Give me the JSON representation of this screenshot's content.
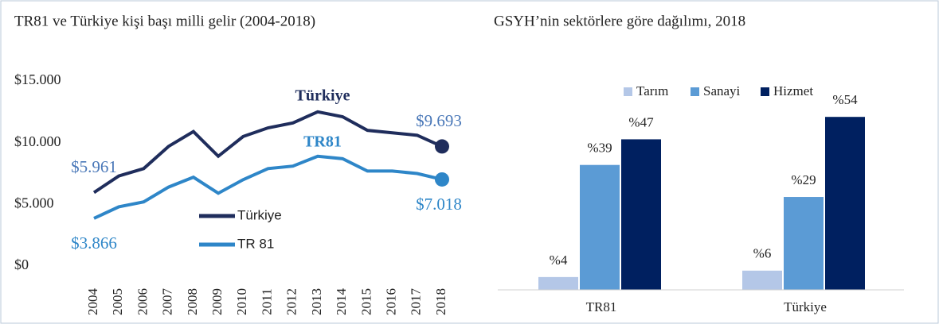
{
  "chart_data": [
    {
      "type": "line",
      "title": "TR81 ve Türkiye kişi başı milli gelir (2004-2018)",
      "categories": [
        "2004",
        "2005",
        "2006",
        "2007",
        "2008",
        "2009",
        "2010",
        "2011",
        "2012",
        "2013",
        "2014",
        "2015",
        "2016",
        "2017",
        "2018"
      ],
      "series": [
        {
          "name": "Türkiye",
          "color": "#1f2d5c",
          "values": [
            5961,
            7300,
            7900,
            9700,
            10900,
            8900,
            10500,
            11200,
            11600,
            12500,
            12100,
            11000,
            10800,
            10600,
            9693
          ],
          "value_labels": [
            "$5.961",
            null,
            null,
            null,
            null,
            null,
            null,
            null,
            null,
            null,
            null,
            null,
            null,
            null,
            "$9.693"
          ]
        },
        {
          "name": "TR 81",
          "color": "#2e86c8",
          "values": [
            3866,
            4800,
            5200,
            6400,
            7200,
            5900,
            7000,
            7900,
            8100,
            8900,
            8700,
            7700,
            7700,
            7500,
            7018
          ],
          "value_labels": [
            "$3.866",
            null,
            null,
            null,
            null,
            null,
            null,
            null,
            null,
            null,
            null,
            null,
            null,
            null,
            "$7.018"
          ]
        }
      ],
      "annotations": [
        "Türkiye",
        "TR81"
      ],
      "ylim": [
        0,
        15000
      ],
      "yticks": [
        {
          "value": 0,
          "label": "$0"
        },
        {
          "value": 5000,
          "label": "$5.000"
        },
        {
          "value": 10000,
          "label": "$10.000"
        },
        {
          "value": 15000,
          "label": "$15.000"
        }
      ]
    },
    {
      "type": "bar",
      "title": "GSYH’nin sektörlere göre dağılımı, 2018",
      "categories": [
        "TR81",
        "Türkiye"
      ],
      "series": [
        {
          "name": "Tarım",
          "color": "#b4c7e7",
          "values": [
            4,
            6
          ],
          "value_labels": [
            "%4",
            "%6"
          ]
        },
        {
          "name": "Sanayi",
          "color": "#5b9bd5",
          "values": [
            39,
            29
          ],
          "value_labels": [
            "%39",
            "%29"
          ]
        },
        {
          "name": "Hizmet",
          "color": "#002060",
          "values": [
            47,
            54
          ],
          "value_labels": [
            "%47",
            "%54"
          ]
        }
      ],
      "ylim": [
        0,
        60
      ]
    }
  ]
}
